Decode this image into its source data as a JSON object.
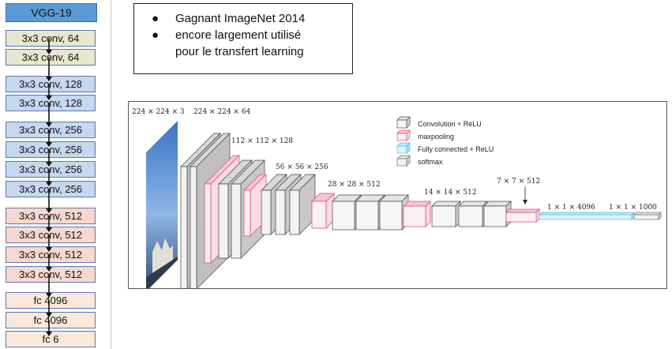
{
  "architecture": {
    "title": "VGG-19",
    "layers": [
      {
        "label": "3x3 conv, 64",
        "kind": "conv64"
      },
      {
        "label": "3x3 conv, 64",
        "kind": "conv64"
      },
      {
        "label": "3x3 conv, 128",
        "kind": "conv128"
      },
      {
        "label": "3x3 conv, 128",
        "kind": "conv128"
      },
      {
        "label": "3x3 conv, 256",
        "kind": "conv256"
      },
      {
        "label": "3x3 conv, 256",
        "kind": "conv256"
      },
      {
        "label": "3x3 conv, 256",
        "kind": "conv256"
      },
      {
        "label": "3x3 conv, 256",
        "kind": "conv256"
      },
      {
        "label": "3x3 conv, 512",
        "kind": "conv512"
      },
      {
        "label": "3x3 conv, 512",
        "kind": "conv512"
      },
      {
        "label": "3x3 conv, 512",
        "kind": "conv512"
      },
      {
        "label": "3x3 conv, 512",
        "kind": "conv512"
      },
      {
        "label": "fc 4096",
        "kind": "fc"
      },
      {
        "label": "fc 4096",
        "kind": "fc"
      },
      {
        "label": "fc 6",
        "kind": "fc"
      }
    ]
  },
  "notes": {
    "bullet_1": "Gagnant ImageNet 2014",
    "bullet_2_line1": "encore largement utilisé",
    "bullet_2_line2": "pour le transfert learning",
    "bullet_glyph": "●"
  },
  "diagram": {
    "dims": {
      "input": "224 × 224 × 3",
      "stage1": "224 × 224 × 64",
      "stage2": "112 × 112 × 128",
      "stage3": "56 × 56 × 256",
      "stage4": "28 × 28 × 512",
      "stage5": "14 × 14 × 512",
      "pool5": "7 × 7 × 512",
      "fc": "1 × 1 × 4096",
      "softmax": "1 × 1 × 1000"
    },
    "legend": {
      "conv": "Convolution + ReLU",
      "pool": "maxpooling",
      "fc": "Fully connected + ReLU",
      "softmax": "softmax"
    },
    "colors": {
      "conv": "#e6e6e6",
      "pool": "#e8739b",
      "fc": "#7ed0e6",
      "softmax": "#bfbfbf"
    }
  }
}
